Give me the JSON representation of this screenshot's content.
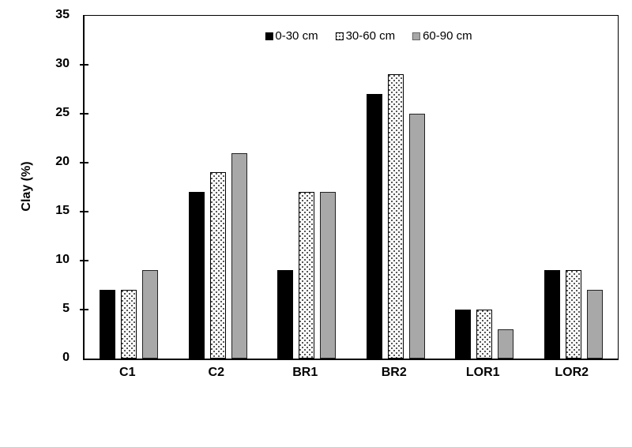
{
  "chart_data": {
    "type": "bar",
    "title": "",
    "xlabel": "",
    "ylabel": "Clay (%)",
    "categories": [
      "C1",
      "C2",
      "BR1",
      "BR2",
      "LOR1",
      "LOR2"
    ],
    "series": [
      {
        "name": "0-30 cm",
        "style": "solid-black",
        "values": [
          7,
          17,
          9,
          27,
          5,
          9
        ]
      },
      {
        "name": "30-60 cm",
        "style": "dotted-white",
        "values": [
          7,
          19,
          17,
          29,
          5,
          9
        ]
      },
      {
        "name": "60-90 cm",
        "style": "solid-gray",
        "values": [
          9,
          21,
          17,
          25,
          3,
          7
        ]
      }
    ],
    "ylim": [
      0,
      35
    ],
    "yticks": [
      0,
      5,
      10,
      15,
      20,
      25,
      30,
      35
    ],
    "ytick_step": 5,
    "grid": false,
    "legend_position": "top-center"
  },
  "colors": {
    "background": "#ffffff",
    "axis": "#000000",
    "text": "#000000",
    "black_series": "#000000",
    "gray_series": "#a8a8a8",
    "dotted_bg": "#ffffff",
    "dot_color": "#444444"
  }
}
